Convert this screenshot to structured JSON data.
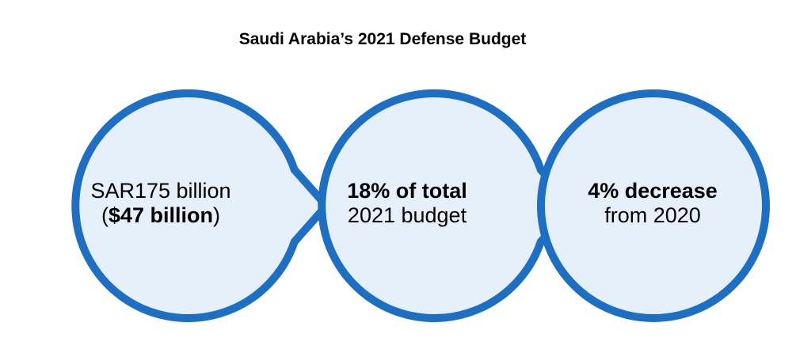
{
  "title": "Saudi Arabia’s 2021 Defense Budget",
  "colors": {
    "ring": "#1d6fc4",
    "fill": "#e6f0fb",
    "text": "#000000"
  },
  "items": [
    {
      "line1": "SAR175 billion",
      "line2_prefix": "(",
      "line2_bold": "$47 billion",
      "line2_suffix": ")"
    },
    {
      "line1": "18% of total",
      "line2": "2021 budget"
    },
    {
      "line1": "4% decrease",
      "line2": "from 2020"
    }
  ]
}
